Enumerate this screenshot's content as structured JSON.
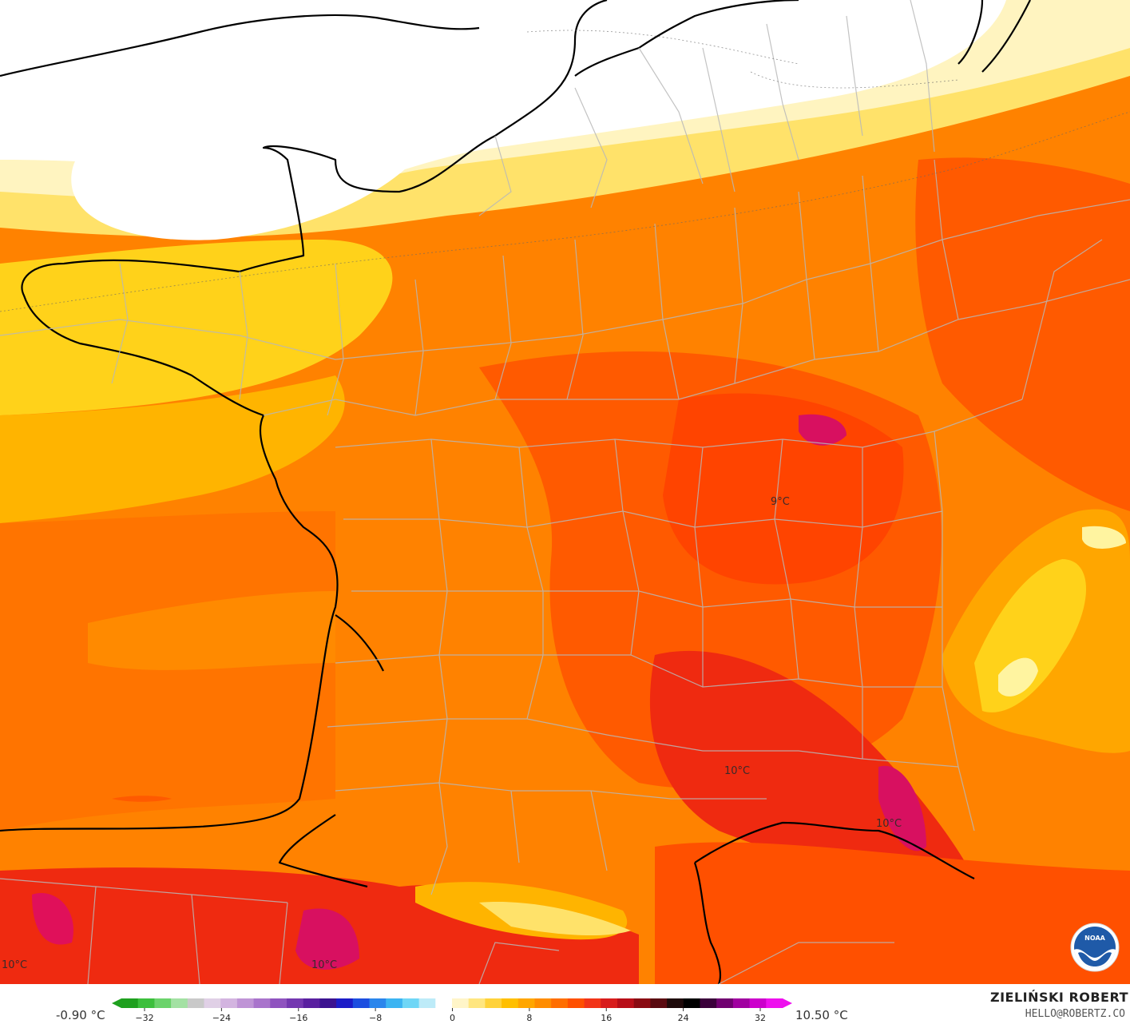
{
  "map": {
    "contour_labels": [
      "9°C",
      "10°C",
      "10°C",
      "10°C",
      "10°C"
    ]
  },
  "legend": {
    "min_label": "-0.90 °C",
    "max_label": "10.50 °C",
    "ticks": [
      "−32",
      "−24",
      "−16",
      "−8",
      "0",
      "8",
      "16",
      "24",
      "32"
    ],
    "colors": [
      "#1fa01f",
      "#3cbf3c",
      "#6bd36b",
      "#a3e1a3",
      "#c9c9c9",
      "#e0d0e6",
      "#d3b4e0",
      "#bf94d6",
      "#a974cc",
      "#8f53bf",
      "#7438b0",
      "#5a20a0",
      "#3b1290",
      "#1c1cc8",
      "#1c4ee0",
      "#2b86ec",
      "#3cb4f2",
      "#6fd6f6",
      "#bdebf8",
      "#ffffff",
      "#fff5c8",
      "#ffe680",
      "#ffd23a",
      "#ffbf00",
      "#ffa600",
      "#ff8c00",
      "#ff6e00",
      "#ff5000",
      "#f23418",
      "#d81c1c",
      "#b80e18",
      "#8a0a12",
      "#5a0a10",
      "#1e0a0a",
      "#000000",
      "#3a003a",
      "#700070",
      "#a000a0",
      "#cc00cc",
      "#ee10ee"
    ]
  },
  "branding": {
    "author": "ZIELIŃSKI ROBERT",
    "email": "HELLO@ROBERTZ.CO",
    "logo_text": "NOAA"
  }
}
